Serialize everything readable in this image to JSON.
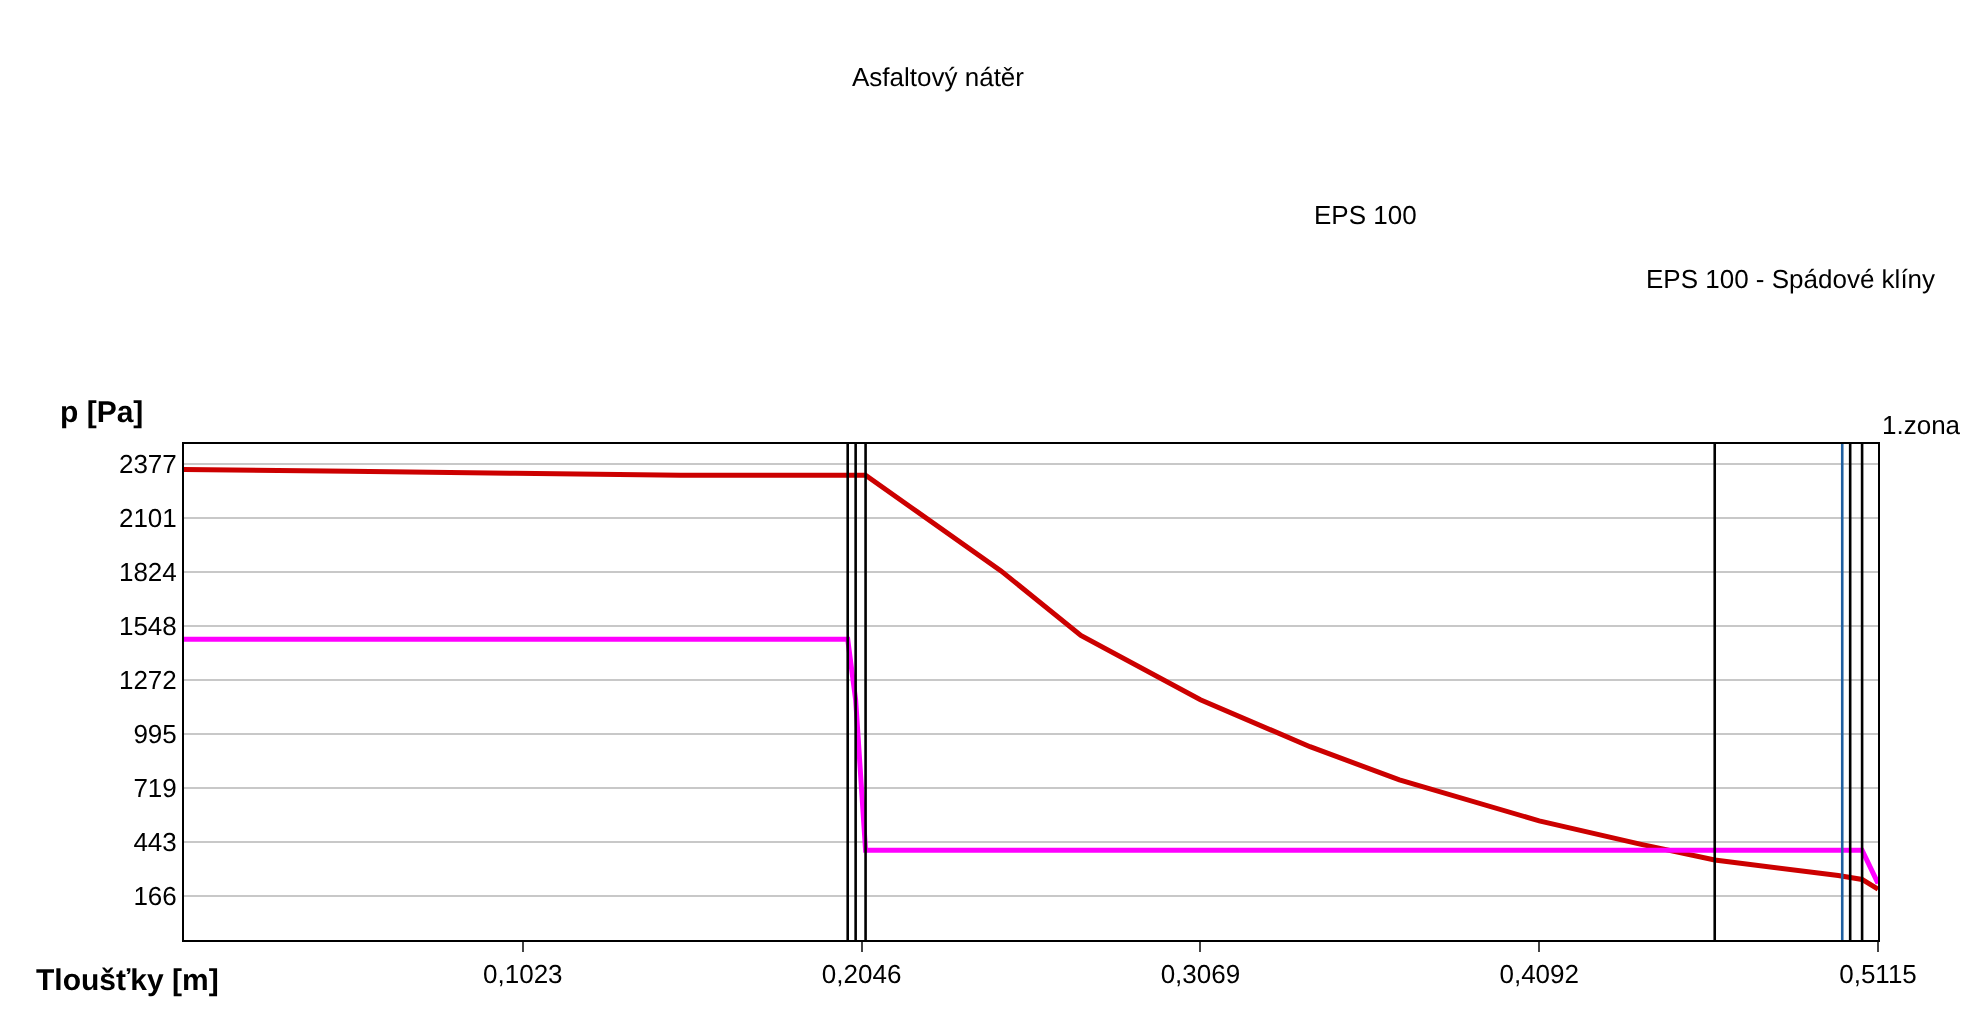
{
  "chart_data": {
    "type": "line",
    "ylabel": "p [Pa]",
    "xlabel": "Tloušťky [m]",
    "xlim": [
      0,
      0.5115
    ],
    "ylim": [
      -60,
      2480
    ],
    "xticks": [
      {
        "value": 0.1023,
        "label": "0,1023"
      },
      {
        "value": 0.2046,
        "label": "0,2046"
      },
      {
        "value": 0.3069,
        "label": "0,3069"
      },
      {
        "value": 0.4092,
        "label": "0,4092"
      },
      {
        "value": 0.5115,
        "label": "0,5115"
      }
    ],
    "yticks": [
      166,
      443,
      719,
      995,
      1272,
      1548,
      1824,
      2101,
      2377
    ],
    "grid": "y",
    "marker": "none",
    "line_style": "solid",
    "series": [
      {
        "color": "#cc0000",
        "x": [
          0,
          0.05,
          0.1,
          0.15,
          0.2004,
          0.2058,
          0.22,
          0.2467,
          0.2708,
          0.3069,
          0.34,
          0.367,
          0.4092,
          0.44,
          0.4622,
          0.4995,
          0.5067,
          0.5115
        ],
        "values": [
          2350,
          2340,
          2330,
          2320,
          2320,
          2320,
          2150,
          1830,
          1500,
          1170,
          930,
          760,
          550,
          430,
          350,
          270,
          250,
          200
        ]
      },
      {
        "color": "#ff00ff",
        "x": [
          0,
          0.2004,
          0.2028,
          0.2058,
          0.5067,
          0.5115
        ],
        "values": [
          1480,
          1480,
          1170,
          400,
          400,
          230
        ]
      }
    ],
    "ref_lines": [
      {
        "axis": "x",
        "value": 0.2004,
        "color": "#000000"
      },
      {
        "axis": "x",
        "value": 0.2028,
        "color": "#000000"
      },
      {
        "axis": "x",
        "value": 0.2058,
        "color": "#000000"
      },
      {
        "axis": "x",
        "value": 0.4622,
        "color": "#000000"
      },
      {
        "axis": "x",
        "value": 0.5007,
        "color": "#1f5fa0"
      },
      {
        "axis": "x",
        "value": 0.5031,
        "color": "#000000"
      },
      {
        "axis": "x",
        "value": 0.5067,
        "color": "#000000"
      }
    ],
    "annotations": [
      "Asfaltový nátěr",
      "EPS 100",
      "EPS 100 - Spádové klíny",
      "1.zona"
    ]
  }
}
